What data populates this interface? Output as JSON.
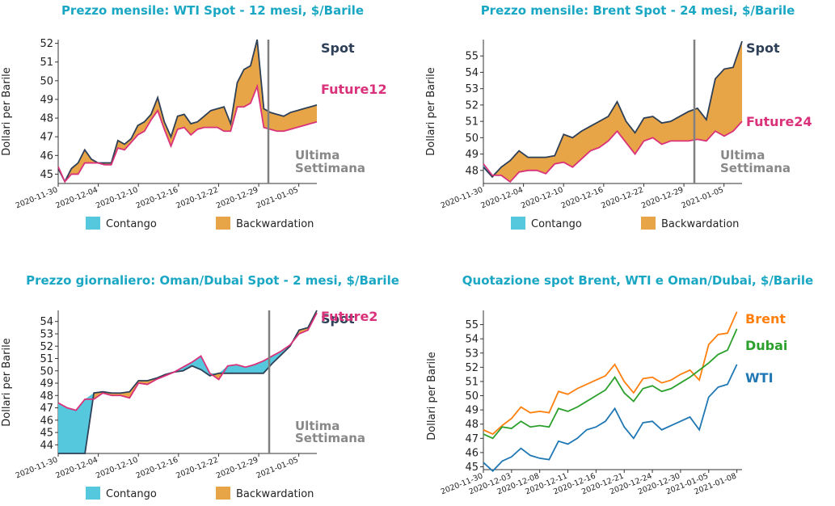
{
  "colors": {
    "contango": "#56c8de",
    "backwardation": "#e8a548",
    "spot": "#2e4057",
    "future": "#d9327a",
    "wti": "#1f77b4",
    "brent": "#ff7f0e",
    "dubai": "#2ca02c",
    "vline": "#808080",
    "title": "#1aa7c4"
  },
  "chart_data": [
    {
      "type": "area",
      "title": "Prezzo mensile: WTI Spot - 12 mesi, $/Barile",
      "ylabel": "Dollari per Barile",
      "ylim": [
        44.5,
        52.2
      ],
      "yticks": [
        45,
        46,
        47,
        48,
        49,
        50,
        51,
        52
      ],
      "xticks": [
        "2020-11-30",
        "2020-12-04",
        "2020-12-10",
        "2020-12-16",
        "2020-12-22",
        "2020-12-29",
        "2021-01-05"
      ],
      "x": [
        "2020-11-30",
        "2020-12-01",
        "2020-12-02",
        "2020-12-03",
        "2020-12-04",
        "2020-12-05",
        "2020-12-06",
        "2020-12-07",
        "2020-12-08",
        "2020-12-09",
        "2020-12-10",
        "2020-12-11",
        "2020-12-12",
        "2020-12-13",
        "2020-12-14",
        "2020-12-15",
        "2020-12-16",
        "2020-12-17",
        "2020-12-18",
        "2020-12-19",
        "2020-12-20",
        "2020-12-21",
        "2020-12-22",
        "2020-12-23",
        "2020-12-24",
        "2020-12-25",
        "2020-12-26",
        "2020-12-27",
        "2020-12-28",
        "2020-12-29",
        "2020-12-30",
        "2020-12-31",
        "2021-01-01",
        "2021-01-02",
        "2021-01-03",
        "2021-01-04",
        "2021-01-05",
        "2021-01-06",
        "2021-01-07",
        "2021-01-08"
      ],
      "series": [
        {
          "name": "Spot",
          "values": [
            45.3,
            44.6,
            45.3,
            45.6,
            46.3,
            45.8,
            45.6,
            45.6,
            45.6,
            46.8,
            46.6,
            46.9,
            47.6,
            47.8,
            48.2,
            49.1,
            47.8,
            47.0,
            48.1,
            48.2,
            47.7,
            47.8,
            48.1,
            48.4,
            48.5,
            48.6,
            47.7,
            49.9,
            50.6,
            50.8,
            52.2,
            48.5,
            48.3,
            48.2,
            48.1,
            48.3,
            48.4,
            48.5,
            48.6,
            48.7
          ],
          "label": "Spot"
        },
        {
          "name": "Future12",
          "values": [
            45.4,
            44.6,
            45.0,
            45.0,
            45.6,
            45.6,
            45.6,
            45.5,
            45.5,
            46.4,
            46.3,
            46.7,
            47.1,
            47.3,
            47.9,
            48.4,
            47.4,
            46.5,
            47.4,
            47.5,
            47.1,
            47.4,
            47.5,
            47.5,
            47.5,
            47.3,
            47.3,
            48.6,
            48.6,
            48.8,
            49.7,
            47.5,
            47.4,
            47.3,
            47.3,
            47.4,
            47.5,
            47.6,
            47.7,
            47.8
          ],
          "label": "Future12"
        }
      ],
      "legend": [
        "Contango",
        "Backwardation"
      ],
      "annotation": [
        "Ultima",
        "Settimana"
      ]
    },
    {
      "type": "area",
      "title": "Prezzo mensile: Brent Spot - 24 mesi, $/Barile",
      "ylabel": "Dollari per Barile",
      "ylim": [
        47.2,
        56.0
      ],
      "yticks": [
        48,
        49,
        50,
        51,
        52,
        53,
        54,
        55
      ],
      "xticks": [
        "2020-11-30",
        "2020-12-04",
        "2020-12-10",
        "2020-12-16",
        "2020-12-22",
        "2020-12-29",
        "2021-01-05"
      ],
      "series": [
        {
          "name": "Spot",
          "values": [
            48.2,
            47.6,
            48.2,
            48.6,
            49.2,
            48.8,
            48.8,
            48.8,
            48.9,
            50.2,
            50.0,
            50.4,
            50.7,
            51.0,
            51.3,
            52.2,
            51.0,
            50.3,
            51.2,
            51.3,
            50.9,
            51.0,
            51.3,
            51.6,
            51.8,
            51.1,
            53.6,
            54.2,
            54.3,
            55.9
          ],
          "label": "Spot"
        },
        {
          "name": "Future24",
          "values": [
            48.4,
            47.7,
            47.7,
            47.3,
            47.9,
            48.0,
            48.0,
            47.8,
            48.4,
            48.5,
            48.2,
            48.7,
            49.2,
            49.4,
            49.8,
            50.4,
            49.7,
            49.0,
            49.8,
            50.0,
            49.6,
            49.8,
            49.8,
            49.8,
            49.9,
            49.8,
            50.4,
            50.1,
            50.4,
            51.0
          ],
          "label": "Future24"
        }
      ],
      "legend": [
        "Contango",
        "Backwardation"
      ],
      "annotation": [
        "Ultima",
        "Settimana"
      ]
    },
    {
      "type": "area",
      "title": "Prezzo giornaliero: Oman/Dubai Spot - 2 mesi, $/Barile",
      "ylabel": "Dollari per Barile",
      "ylim": [
        43.3,
        54.9
      ],
      "yticks": [
        44,
        45,
        46,
        47,
        48,
        49,
        50,
        51,
        52,
        53,
        54
      ],
      "xticks": [
        "2020-11-30",
        "2020-12-04",
        "2020-12-10",
        "2020-12-16",
        "2020-12-22",
        "2020-12-29",
        "2021-01-05"
      ],
      "series": [
        {
          "name": "Spot",
          "values": [
            43.3,
            43.3,
            43.3,
            43.3,
            48.2,
            48.3,
            48.2,
            48.2,
            48.3,
            49.2,
            49.2,
            49.4,
            49.7,
            49.9,
            50.0,
            50.4,
            50.1,
            49.6,
            49.8,
            49.8,
            49.8,
            49.8,
            49.8,
            49.8,
            50.6,
            51.3,
            52.0,
            53.3,
            53.5,
            54.9
          ],
          "label": "Spot"
        },
        {
          "name": "Future2",
          "values": [
            47.4,
            47.0,
            46.8,
            47.7,
            47.7,
            48.2,
            48.0,
            48.0,
            47.8,
            49.0,
            48.9,
            49.3,
            49.6,
            49.9,
            50.3,
            50.7,
            51.2,
            49.8,
            49.3,
            50.4,
            50.5,
            50.3,
            50.5,
            50.8,
            51.2,
            51.6,
            52.1,
            53.0,
            53.3,
            54.7
          ],
          "label": "Future2"
        }
      ],
      "legend": [
        "Contango",
        "Backwardation"
      ],
      "annotation": [
        "Ultima",
        "Settimana"
      ]
    },
    {
      "type": "line",
      "title": "Quotazione spot Brent, WTI e Oman/Dubai, $/Barile",
      "ylabel": "Dollari per Barile",
      "ylim": [
        44.8,
        56.0
      ],
      "yticks": [
        45,
        46,
        47,
        48,
        49,
        50,
        51,
        52,
        53,
        54,
        55
      ],
      "xticks": [
        "2020-11-30",
        "2020-12-03",
        "2020-12-08",
        "2020-12-11",
        "2020-12-16",
        "2020-12-21",
        "2020-12-24",
        "2020-12-30",
        "2021-01-05",
        "2021-01-08"
      ],
      "series": [
        {
          "name": "Brent",
          "values": [
            47.6,
            47.3,
            47.9,
            48.4,
            49.2,
            48.8,
            48.9,
            48.8,
            50.3,
            50.1,
            50.5,
            50.8,
            51.1,
            51.4,
            52.2,
            51.0,
            50.2,
            51.2,
            51.3,
            50.9,
            51.1,
            51.5,
            51.8,
            51.1,
            53.6,
            54.3,
            54.4,
            55.9
          ],
          "label": "Brent"
        },
        {
          "name": "Dubai",
          "values": [
            47.3,
            47.0,
            47.8,
            47.7,
            48.2,
            47.8,
            47.9,
            47.8,
            49.1,
            48.9,
            49.2,
            49.6,
            50.0,
            50.4,
            51.3,
            50.2,
            49.6,
            50.5,
            50.7,
            50.3,
            50.5,
            50.9,
            51.3,
            51.8,
            52.3,
            52.9,
            53.2,
            54.7
          ],
          "label": "Dubai"
        },
        {
          "name": "WTI",
          "values": [
            45.3,
            44.7,
            45.4,
            45.7,
            46.3,
            45.8,
            45.6,
            45.5,
            46.8,
            46.6,
            47.0,
            47.6,
            47.8,
            48.2,
            49.1,
            47.8,
            47.0,
            48.1,
            48.2,
            47.6,
            47.9,
            48.2,
            48.5,
            47.6,
            49.9,
            50.6,
            50.8,
            52.2
          ],
          "label": "WTI"
        }
      ]
    }
  ]
}
